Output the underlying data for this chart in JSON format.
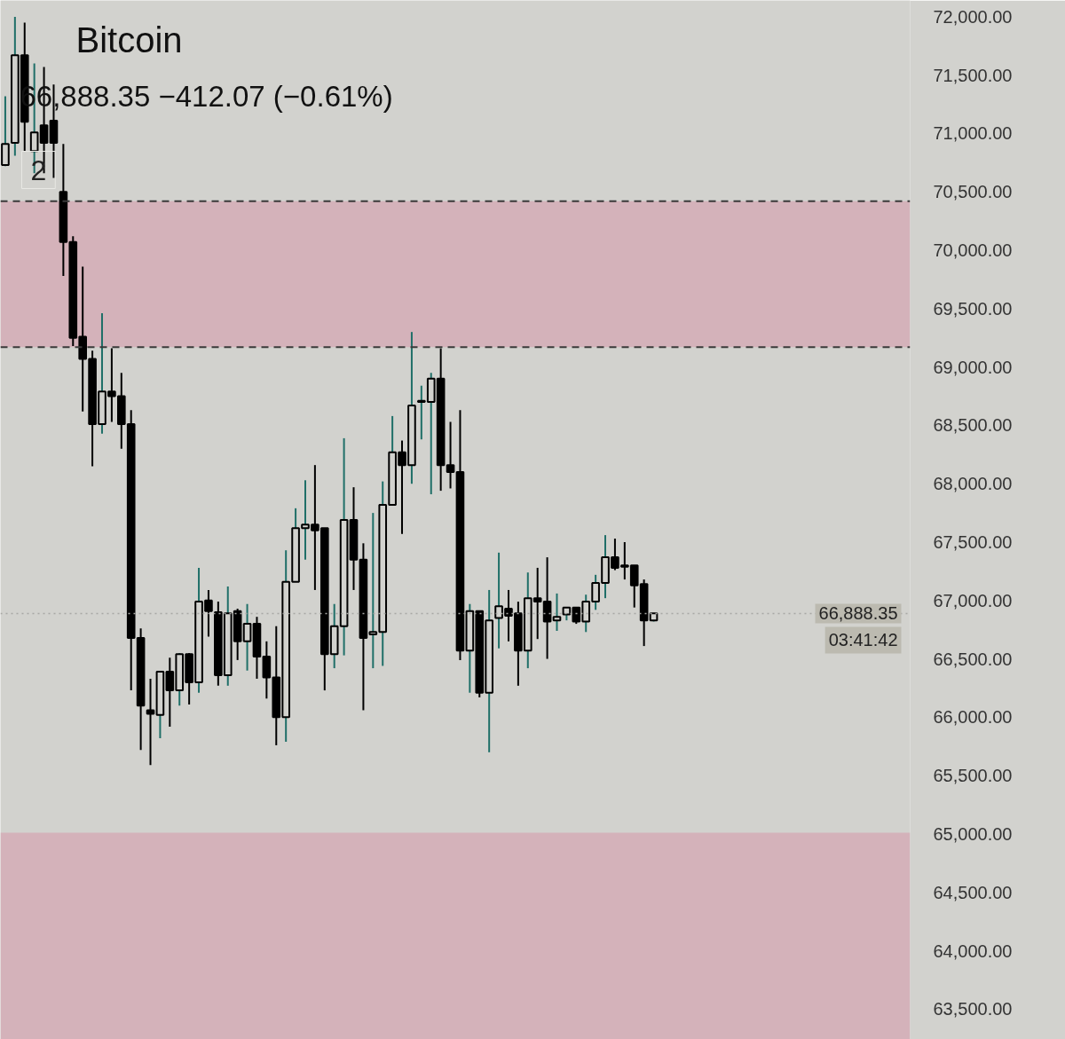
{
  "chart_data": {
    "type": "candlestick",
    "title": "Bitcoin",
    "subtitle": "66,888.35  −412.07 (−0.61%)",
    "annotations": [
      "2",
      "03:41:42"
    ],
    "categories": [
      null,
      null,
      null,
      null,
      null,
      null,
      null,
      null,
      null,
      null,
      null,
      null,
      null,
      null,
      null,
      null,
      null,
      null,
      null,
      null,
      null,
      null,
      null,
      null,
      null,
      null,
      null,
      null,
      null,
      null,
      null,
      null,
      null,
      null,
      null,
      null,
      null,
      null,
      null,
      null,
      null,
      null,
      null,
      null,
      null,
      null,
      null,
      null,
      null,
      null,
      null,
      null,
      null,
      null,
      null,
      null,
      null,
      null,
      null,
      null,
      null,
      null,
      null,
      null,
      null,
      null,
      null,
      null,
      null,
      null,
      null,
      null,
      null,
      null,
      null,
      null,
      null,
      null,
      null,
      null,
      null,
      null,
      null,
      null,
      null,
      null,
      null,
      null,
      null,
      null,
      null,
      null,
      null,
      null
    ],
    "ohlc": [
      [
        70730,
        71320,
        70720,
        70910
      ],
      [
        70920,
        72000,
        70810,
        71670
      ],
      [
        71670,
        71950,
        70850,
        71100
      ],
      [
        70850,
        71600,
        70660,
        71010
      ],
      [
        71070,
        71570,
        70660,
        70920
      ],
      [
        71110,
        71420,
        70620,
        70920
      ],
      [
        70500,
        70910,
        69780,
        70070
      ],
      [
        70070,
        70120,
        69180,
        69250
      ],
      [
        69260,
        69860,
        68620,
        69070
      ],
      [
        69070,
        69140,
        68150,
        68510
      ],
      [
        68510,
        69460,
        68430,
        68790
      ],
      [
        68790,
        69160,
        68530,
        68750
      ],
      [
        68750,
        68950,
        68300,
        68510
      ],
      [
        68510,
        68630,
        66230,
        66680
      ],
      [
        66680,
        66760,
        65720,
        66100
      ],
      [
        66060,
        66330,
        65590,
        66030
      ],
      [
        66020,
        66390,
        65820,
        66390
      ],
      [
        66390,
        66510,
        65920,
        66230
      ],
      [
        66230,
        66550,
        66100,
        66540
      ],
      [
        66540,
        66550,
        66110,
        66300
      ],
      [
        66300,
        67280,
        66210,
        66990
      ],
      [
        67000,
        67090,
        66690,
        66910
      ],
      [
        66900,
        66990,
        66270,
        66360
      ],
      [
        66360,
        67120,
        66270,
        66890
      ],
      [
        66910,
        66930,
        66490,
        66650
      ],
      [
        66650,
        66970,
        66400,
        66800
      ],
      [
        66800,
        66860,
        66330,
        66520
      ],
      [
        66520,
        66650,
        66160,
        66340
      ],
      [
        66340,
        66780,
        65760,
        66000
      ],
      [
        66000,
        67430,
        65790,
        67160
      ],
      [
        67160,
        67790,
        67160,
        67620
      ],
      [
        67620,
        68030,
        67350,
        67650
      ],
      [
        67650,
        68160,
        67090,
        67600
      ],
      [
        67620,
        67620,
        66230,
        66540
      ],
      [
        66540,
        66970,
        66420,
        66780
      ],
      [
        66780,
        68390,
        66530,
        67690
      ],
      [
        67690,
        67970,
        67090,
        67350
      ],
      [
        67350,
        67490,
        66060,
        66680
      ],
      [
        66710,
        67750,
        66420,
        66730
      ],
      [
        66730,
        68020,
        66440,
        67820
      ],
      [
        67820,
        68580,
        67820,
        68270
      ],
      [
        68270,
        68370,
        67570,
        68160
      ],
      [
        68160,
        69300,
        68000,
        68670
      ],
      [
        68700,
        68840,
        68380,
        68710
      ],
      [
        68700,
        68950,
        67910,
        68900
      ],
      [
        68900,
        69160,
        67940,
        68160
      ],
      [
        68160,
        68530,
        67960,
        68100
      ],
      [
        68100,
        68630,
        66490,
        66570
      ],
      [
        66570,
        66970,
        66210,
        66910
      ],
      [
        66910,
        66910,
        66170,
        66210
      ],
      [
        66210,
        67090,
        65700,
        66830
      ],
      [
        66850,
        67410,
        66590,
        66950
      ],
      [
        66930,
        67090,
        66650,
        66870
      ],
      [
        66890,
        66990,
        66270,
        66570
      ],
      [
        66570,
        67240,
        66420,
        67020
      ],
      [
        67020,
        67280,
        66670,
        66990
      ],
      [
        66990,
        67370,
        66500,
        66820
      ],
      [
        66830,
        67060,
        66740,
        66860
      ],
      [
        66880,
        66940,
        66830,
        66940
      ],
      [
        66940,
        66940,
        66800,
        66820
      ],
      [
        66820,
        67050,
        66730,
        66990
      ],
      [
        66990,
        67220,
        66920,
        67150
      ],
      [
        67150,
        67560,
        67020,
        67370
      ],
      [
        67370,
        67530,
        67260,
        67280
      ],
      [
        67300,
        67500,
        67180,
        67290
      ],
      [
        67300,
        67300,
        66940,
        67130
      ],
      [
        67140,
        67180,
        66610,
        66830
      ],
      [
        66830,
        66890,
        66820,
        66890
      ],
      null,
      null,
      null,
      null,
      null,
      null,
      null,
      null,
      null,
      null,
      null,
      null,
      null,
      null,
      null,
      null,
      null,
      null,
      null,
      null,
      null,
      null,
      null,
      null,
      null,
      null
    ],
    "ylim": [
      63240,
      72140
    ],
    "yticks": [
      {
        "value": 63500,
        "label": "63,500.00"
      },
      {
        "value": 64000,
        "label": "64,000.00"
      },
      {
        "value": 64500,
        "label": "64,500.00"
      },
      {
        "value": 65000,
        "label": "65,000.00"
      },
      {
        "value": 65500,
        "label": "65,500.00"
      },
      {
        "value": 66000,
        "label": "66,000.00"
      },
      {
        "value": 66500,
        "label": "66,500.00"
      },
      {
        "value": 67000,
        "label": "67,000.00"
      },
      {
        "value": 67500,
        "label": "67,500.00"
      },
      {
        "value": 68000,
        "label": "68,000.00"
      },
      {
        "value": 68500,
        "label": "68,500.00"
      },
      {
        "value": 69000,
        "label": "69,000.00"
      },
      {
        "value": 69500,
        "label": "69,500.00"
      },
      {
        "value": 70000,
        "label": "70,000.00"
      },
      {
        "value": 70500,
        "label": "70,500.00"
      },
      {
        "value": 71000,
        "label": "71,000.00"
      },
      {
        "value": 71500,
        "label": "71,500.00"
      },
      {
        "value": 72000,
        "label": "72,000.00"
      }
    ],
    "grid": false,
    "bands": [
      {
        "axis": "y",
        "from": 69170,
        "to": 70420,
        "color": "#d4b2ba"
      },
      {
        "axis": "y",
        "from": 63240,
        "to": 65010,
        "color": "#d4b2ba"
      }
    ],
    "ref_lines": [
      {
        "axis": "y",
        "value": 66888.35,
        "label": "66,888.35",
        "color": "#a8a8a4",
        "line_style": "dotted"
      },
      {
        "axis": "y",
        "value": 70420,
        "color": "#3a3a3a",
        "line_style": "dashed"
      },
      {
        "axis": "y",
        "value": 69170,
        "color": "#3a3a3a",
        "line_style": "dashed"
      }
    ]
  }
}
